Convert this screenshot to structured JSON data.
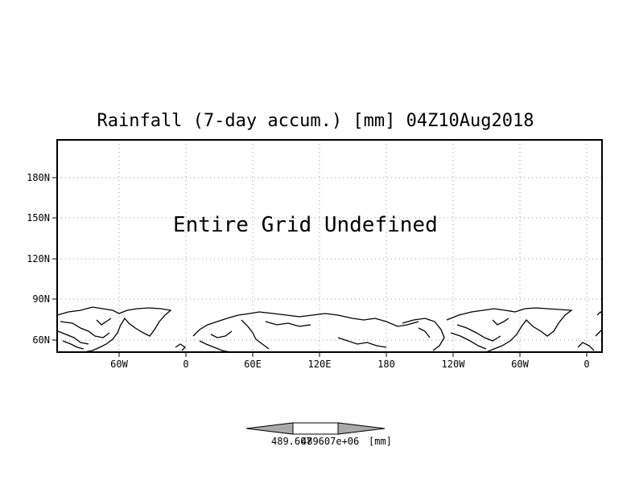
{
  "title": "Rainfall (7-day accum.) [mm] 04Z10Aug2018",
  "message": "Entire Grid Undefined",
  "y_ticks": [
    "180N",
    "150N",
    "120N",
    "90N",
    "60N"
  ],
  "x_ticks": [
    "60W",
    "0",
    "60E",
    "120E",
    "180",
    "120W",
    "60W",
    "0"
  ],
  "colorbar": {
    "low_label": "489.607",
    "high_label": "489607e+06",
    "unit": "[mm]"
  }
}
